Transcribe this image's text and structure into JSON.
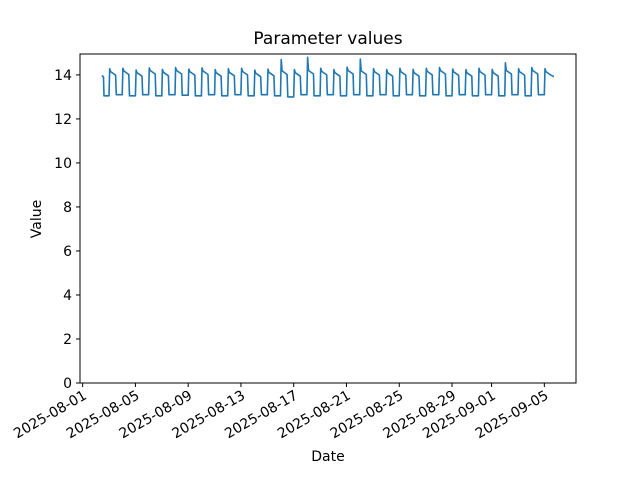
{
  "figure": {
    "title": "Parameter values",
    "xlabel": "Date",
    "ylabel": "Value",
    "background_color": "#ffffff",
    "spine_color": "#000000"
  },
  "chart_data": {
    "type": "line",
    "title": "Parameter values",
    "xlabel": "Date",
    "ylabel": "Value",
    "legend": null,
    "grid": false,
    "line_color": "#1f77b4",
    "ylim": [
      0,
      14.95
    ],
    "yticks": [
      0,
      2,
      4,
      6,
      8,
      10,
      12,
      14
    ],
    "x_epoch": "2025-08-01",
    "xlim_days": [
      -0.2,
      37.4
    ],
    "xticks": [
      "2025-08-01",
      "2025-08-05",
      "2025-08-09",
      "2025-08-13",
      "2025-08-17",
      "2025-08-21",
      "2025-08-25",
      "2025-08-29",
      "2025-09-01",
      "2025-09-05"
    ],
    "pattern": "daily square wave: sharp morning rise to peak, high plateau with slight decay, sharp fall to low plateau",
    "days": [
      {
        "date": "2025-08-02",
        "peak": 13.95,
        "high": 13.95,
        "low": 13.05
      },
      {
        "date": "2025-08-03",
        "peak": 14.28,
        "high": 14.15,
        "low": 13.1
      },
      {
        "date": "2025-08-04",
        "peak": 14.3,
        "high": 14.18,
        "low": 13.05
      },
      {
        "date": "2025-08-05",
        "peak": 14.22,
        "high": 14.1,
        "low": 13.1
      },
      {
        "date": "2025-08-06",
        "peak": 14.32,
        "high": 14.2,
        "low": 13.05
      },
      {
        "date": "2025-08-07",
        "peak": 14.25,
        "high": 14.12,
        "low": 13.1
      },
      {
        "date": "2025-08-08",
        "peak": 14.33,
        "high": 14.2,
        "low": 13.08
      },
      {
        "date": "2025-08-09",
        "peak": 14.27,
        "high": 14.15,
        "low": 13.05
      },
      {
        "date": "2025-08-10",
        "peak": 14.32,
        "high": 14.18,
        "low": 13.1
      },
      {
        "date": "2025-08-11",
        "peak": 14.24,
        "high": 14.1,
        "low": 13.05
      },
      {
        "date": "2025-08-12",
        "peak": 14.28,
        "high": 14.12,
        "low": 13.1
      },
      {
        "date": "2025-08-13",
        "peak": 14.3,
        "high": 14.16,
        "low": 13.05
      },
      {
        "date": "2025-08-14",
        "peak": 14.22,
        "high": 14.08,
        "low": 13.1
      },
      {
        "date": "2025-08-15",
        "peak": 14.26,
        "high": 14.12,
        "low": 13.05
      },
      {
        "date": "2025-08-16",
        "peak": 14.7,
        "high": 14.18,
        "low": 13.0
      },
      {
        "date": "2025-08-17",
        "peak": 14.24,
        "high": 14.1,
        "low": 13.1
      },
      {
        "date": "2025-08-18",
        "peak": 14.8,
        "high": 14.2,
        "low": 13.05
      },
      {
        "date": "2025-08-19",
        "peak": 14.3,
        "high": 14.16,
        "low": 13.1
      },
      {
        "date": "2025-08-20",
        "peak": 14.24,
        "high": 14.1,
        "low": 13.05
      },
      {
        "date": "2025-08-21",
        "peak": 14.35,
        "high": 14.2,
        "low": 13.1
      },
      {
        "date": "2025-08-22",
        "peak": 14.72,
        "high": 14.18,
        "low": 13.05
      },
      {
        "date": "2025-08-23",
        "peak": 14.28,
        "high": 14.15,
        "low": 13.1
      },
      {
        "date": "2025-08-24",
        "peak": 14.24,
        "high": 14.1,
        "low": 13.05
      },
      {
        "date": "2025-08-25",
        "peak": 14.3,
        "high": 14.15,
        "low": 13.1
      },
      {
        "date": "2025-08-26",
        "peak": 14.25,
        "high": 14.1,
        "low": 13.05
      },
      {
        "date": "2025-08-27",
        "peak": 14.3,
        "high": 14.16,
        "low": 13.1
      },
      {
        "date": "2025-08-28",
        "peak": 14.33,
        "high": 14.2,
        "low": 13.05
      },
      {
        "date": "2025-08-29",
        "peak": 14.27,
        "high": 14.14,
        "low": 13.1
      },
      {
        "date": "2025-08-30",
        "peak": 14.24,
        "high": 14.1,
        "low": 13.05
      },
      {
        "date": "2025-08-31",
        "peak": 14.3,
        "high": 14.15,
        "low": 13.1
      },
      {
        "date": "2025-09-01",
        "peak": 14.25,
        "high": 14.1,
        "low": 13.05
      },
      {
        "date": "2025-09-02",
        "peak": 14.55,
        "high": 14.2,
        "low": 13.1
      },
      {
        "date": "2025-09-03",
        "peak": 14.28,
        "high": 14.15,
        "low": 13.05
      },
      {
        "date": "2025-09-04",
        "peak": 14.33,
        "high": 14.2,
        "low": 13.1
      },
      {
        "date": "2025-09-05",
        "peak": 14.28,
        "high": 14.15,
        "low": 13.05
      }
    ]
  }
}
